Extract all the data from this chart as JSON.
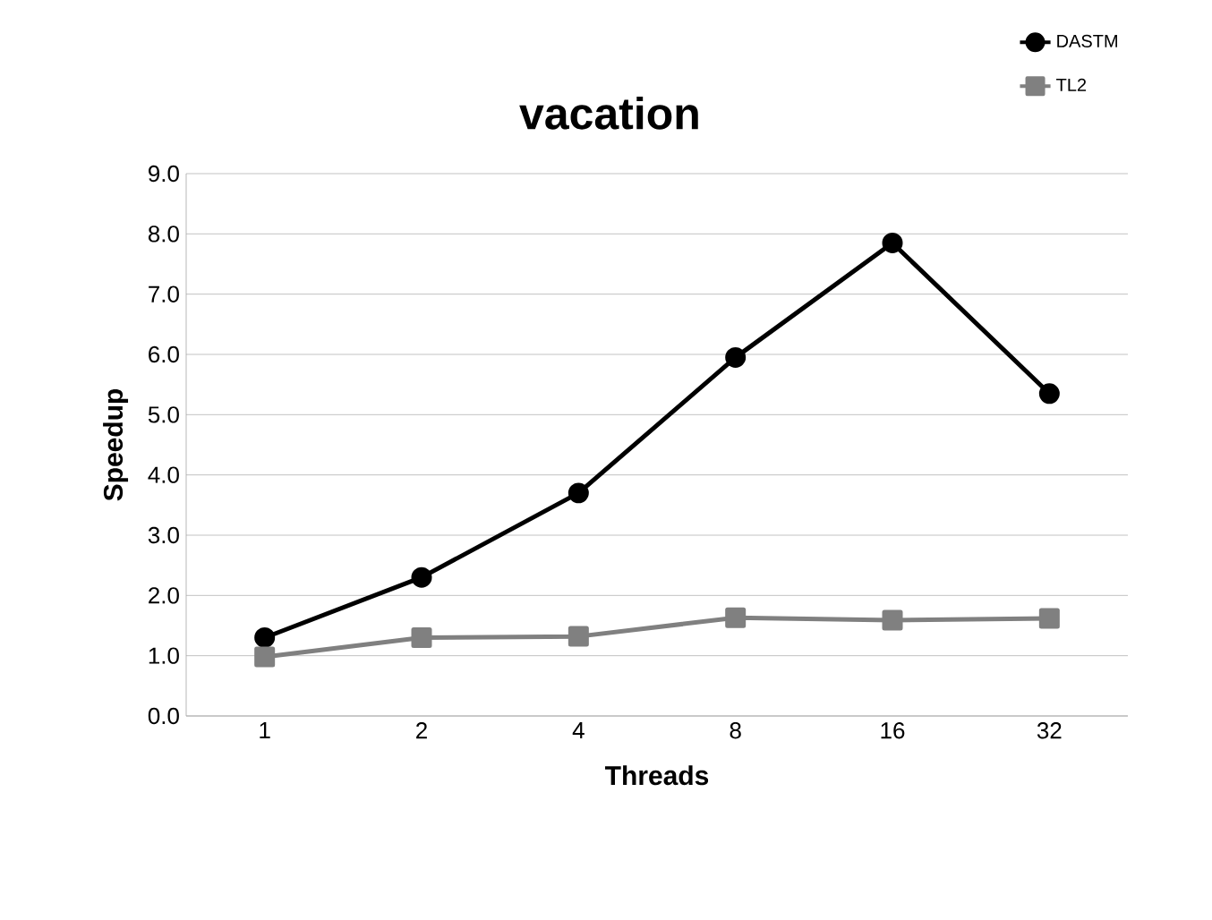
{
  "chart_data": {
    "type": "line",
    "title": "vacation",
    "xlabel": "Threads",
    "ylabel": "Speedup",
    "categories": [
      "1",
      "2",
      "4",
      "8",
      "16",
      "32"
    ],
    "series": [
      {
        "name": "DASTM",
        "color": "#000000",
        "marker": "circle",
        "values": [
          1.3,
          2.3,
          3.7,
          5.95,
          7.85,
          5.35
        ]
      },
      {
        "name": "TL2",
        "color": "#808080",
        "marker": "square",
        "values": [
          0.98,
          1.3,
          1.32,
          1.63,
          1.59,
          1.62
        ]
      }
    ],
    "ylim": [
      0,
      9
    ],
    "yticks": [
      {
        "value": 0,
        "label": "0.0"
      },
      {
        "value": 1,
        "label": "1.0"
      },
      {
        "value": 2,
        "label": "2.0"
      },
      {
        "value": 3,
        "label": "3.0"
      },
      {
        "value": 4,
        "label": "4.0"
      },
      {
        "value": 5,
        "label": "5.0"
      },
      {
        "value": 6,
        "label": "6.0"
      },
      {
        "value": 7,
        "label": "7.0"
      },
      {
        "value": 8,
        "label": "8.0"
      },
      {
        "value": 9,
        "label": "9.0"
      }
    ],
    "grid": "y",
    "legend": "top right"
  }
}
